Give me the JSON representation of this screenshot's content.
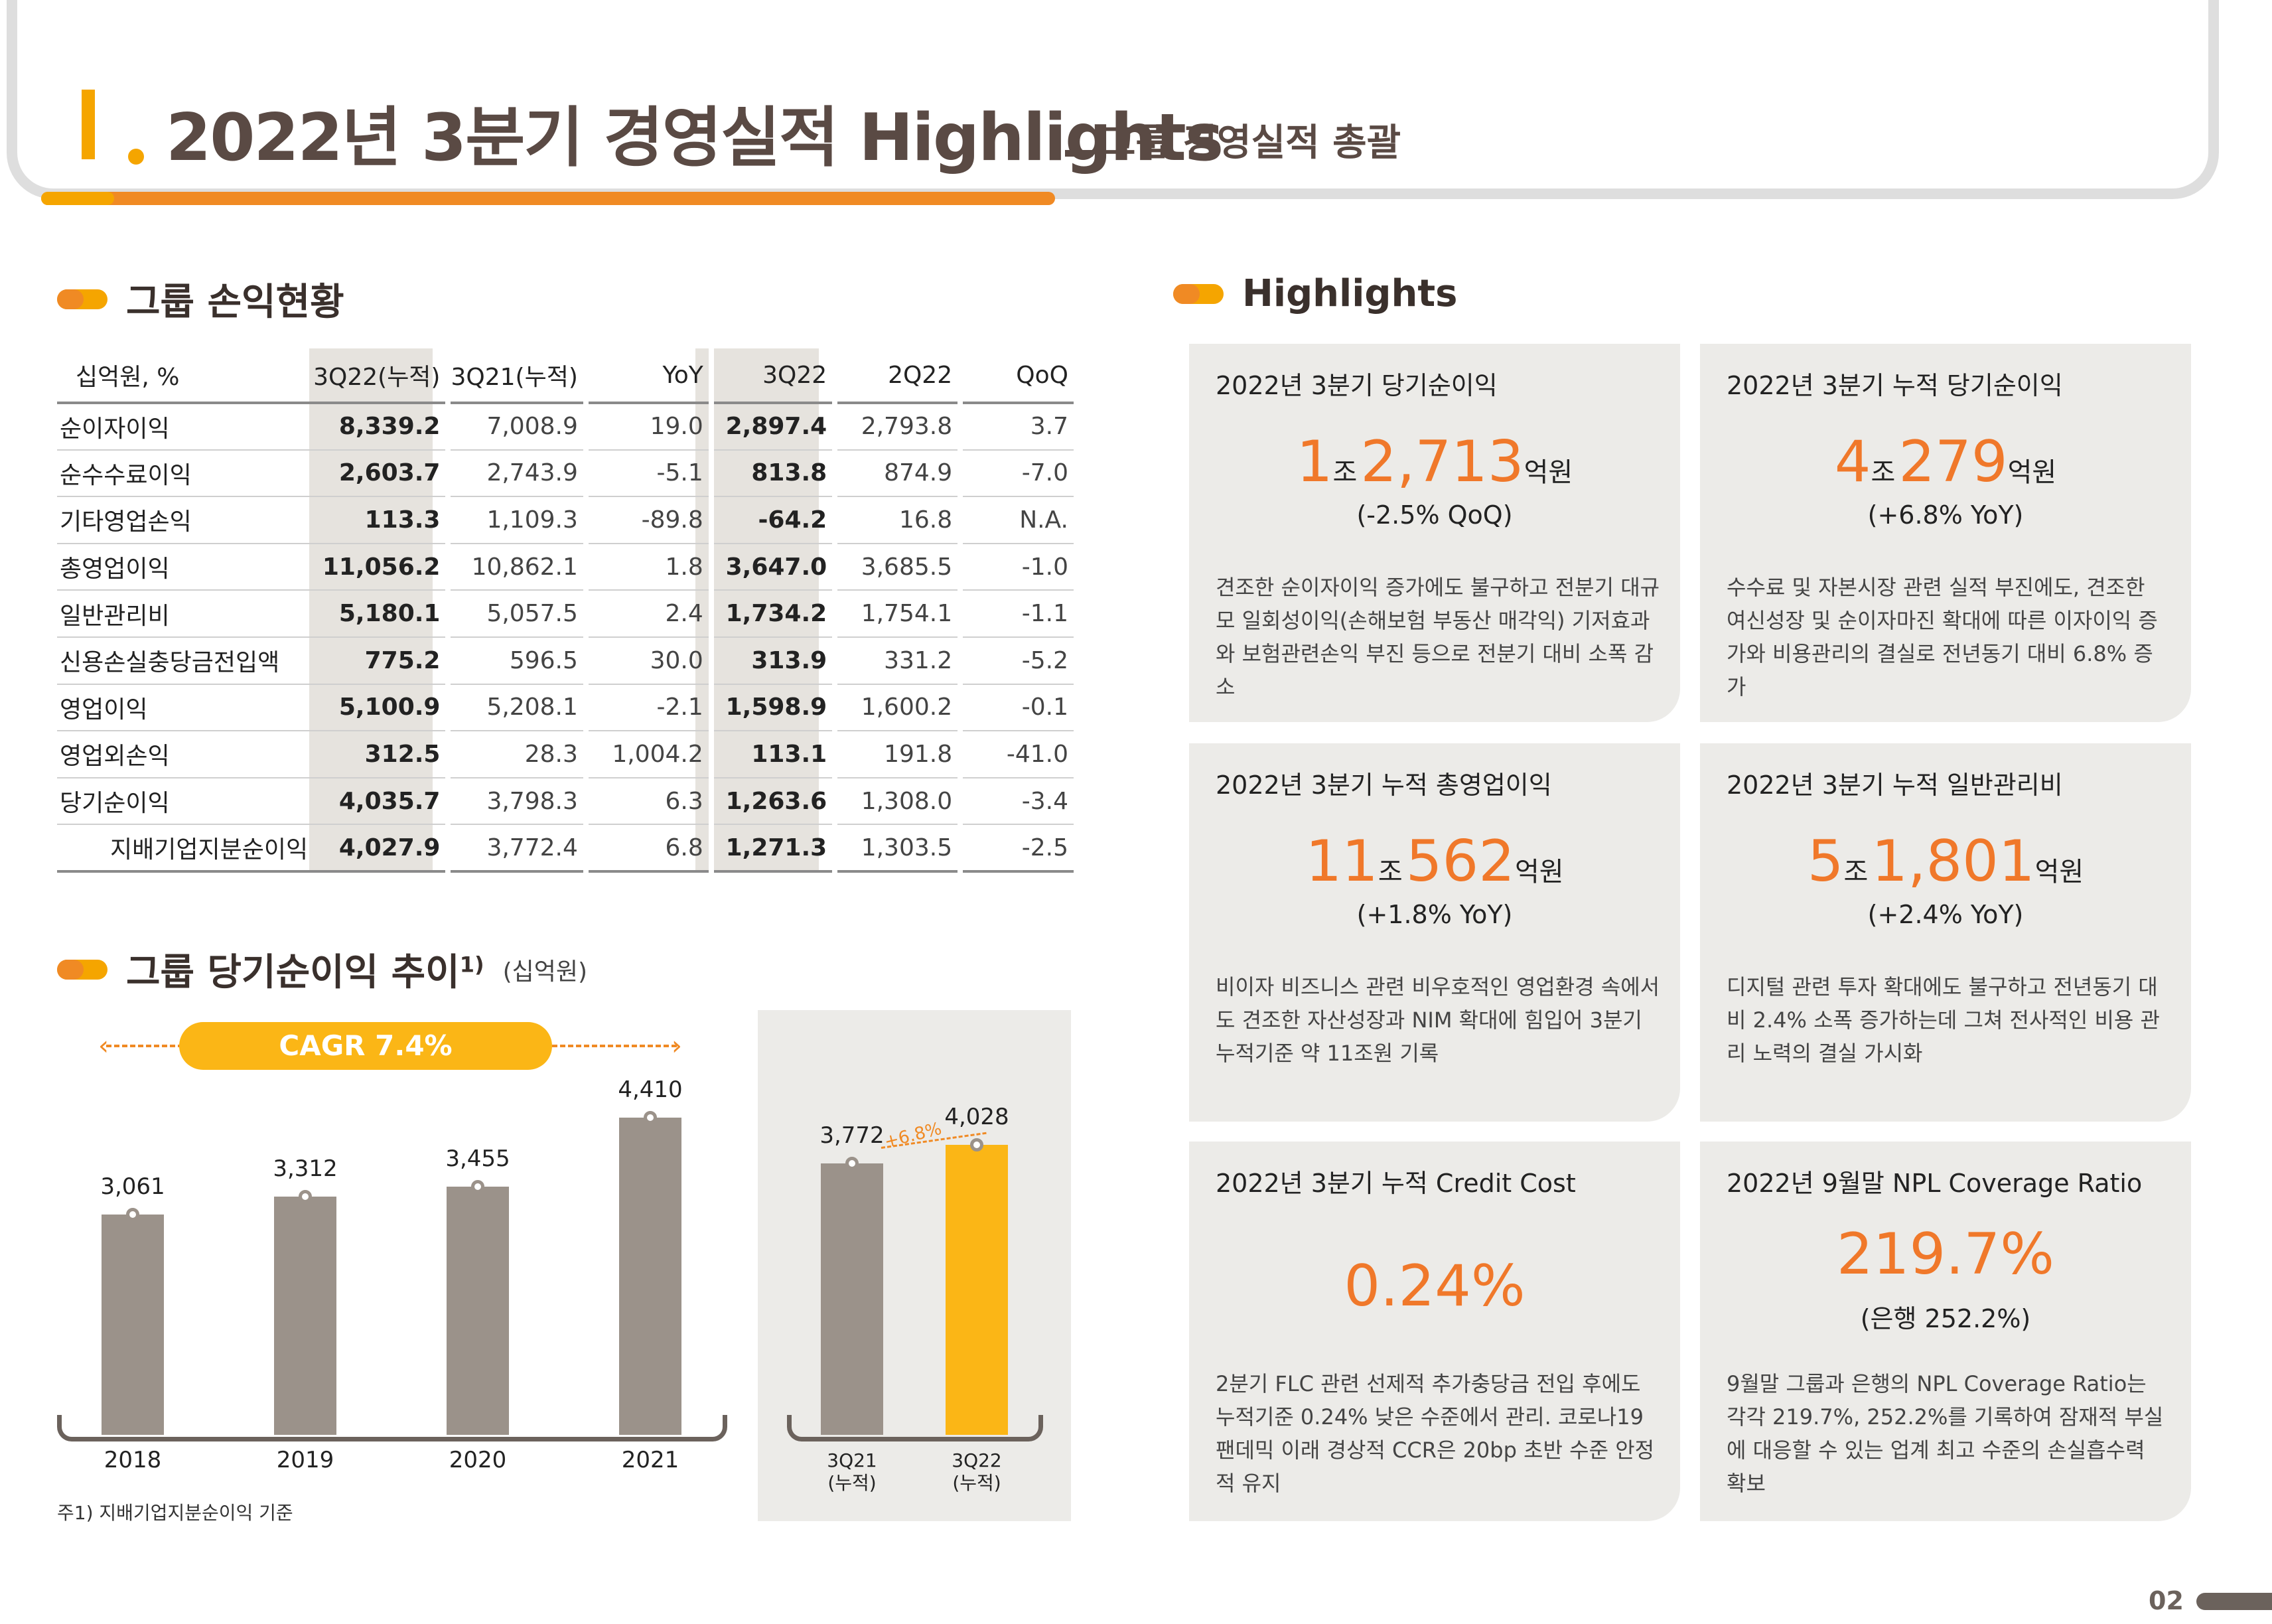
{
  "header": {
    "roman": "I",
    "title": "2022년 3분기 경영실적 Highlights",
    "subtitle": "그룹 경영실적 총괄"
  },
  "income": {
    "section_title": "그룹 손익현황",
    "columns": [
      "십억원, %",
      "3Q22(누적)",
      "3Q21(누적)",
      "YoY",
      "3Q22",
      "2Q22",
      "QoQ"
    ],
    "rows": [
      {
        "label": "순이자이익",
        "c1": "8,339.2",
        "c2": "7,008.9",
        "c3": "19.0",
        "c4": "2,897.4",
        "c5": "2,793.8",
        "c6": "3.7"
      },
      {
        "label": "순수수료이익",
        "c1": "2,603.7",
        "c2": "2,743.9",
        "c3": "-5.1",
        "c4": "813.8",
        "c5": "874.9",
        "c6": "-7.0"
      },
      {
        "label": "기타영업손익",
        "c1": "113.3",
        "c2": "1,109.3",
        "c3": "-89.8",
        "c4": "-64.2",
        "c5": "16.8",
        "c6": "N.A."
      },
      {
        "label": "총영업이익",
        "c1": "11,056.2",
        "c2": "10,862.1",
        "c3": "1.8",
        "c4": "3,647.0",
        "c5": "3,685.5",
        "c6": "-1.0"
      },
      {
        "label": "일반관리비",
        "c1": "5,180.1",
        "c2": "5,057.5",
        "c3": "2.4",
        "c4": "1,734.2",
        "c5": "1,754.1",
        "c6": "-1.1"
      },
      {
        "label": "신용손실충당금전입액",
        "c1": "775.2",
        "c2": "596.5",
        "c3": "30.0",
        "c4": "313.9",
        "c5": "331.2",
        "c6": "-5.2"
      },
      {
        "label": "영업이익",
        "c1": "5,100.9",
        "c2": "5,208.1",
        "c3": "-2.1",
        "c4": "1,598.9",
        "c5": "1,600.2",
        "c6": "-0.1"
      },
      {
        "label": "영업외손익",
        "c1": "312.5",
        "c2": "28.3",
        "c3": "1,004.2",
        "c4": "113.1",
        "c5": "191.8",
        "c6": "-41.0"
      },
      {
        "label": "당기순이익",
        "c1": "4,035.7",
        "c2": "3,798.3",
        "c3": "6.3",
        "c4": "1,263.6",
        "c5": "1,308.0",
        "c6": "-3.4"
      },
      {
        "label": "지배기업지분순이익",
        "c1": "4,027.9",
        "c2": "3,772.4",
        "c3": "6.8",
        "c4": "1,271.3",
        "c5": "1,303.5",
        "c6": "-2.5"
      }
    ]
  },
  "trend": {
    "section_title": "그룹 당기순이익 추이",
    "sup": "1)",
    "unit": "(십억원)",
    "cagr": "CAGR 7.4%",
    "growth": "+6.8%",
    "footnote": "주1) 지배기업지분순이익 기준"
  },
  "chart_data": {
    "type": "bar",
    "categories": [
      "2018",
      "2019",
      "2020",
      "2021",
      "3Q21\n(누적)",
      "3Q22\n(누적)"
    ],
    "values": [
      3061,
      3312,
      3455,
      4410,
      3772,
      4028
    ],
    "value_labels": [
      "3,061",
      "3,312",
      "3,455",
      "4,410",
      "3,772",
      "4,028"
    ],
    "cat_labels": [
      {
        "l1": "2018",
        "l2": ""
      },
      {
        "l1": "2019",
        "l2": ""
      },
      {
        "l1": "2020",
        "l2": ""
      },
      {
        "l1": "2021",
        "l2": ""
      },
      {
        "l1": "3Q21",
        "l2": "(누적)"
      },
      {
        "l1": "3Q22",
        "l2": "(누적)"
      }
    ],
    "ylim": [
      0,
      4410
    ],
    "colors": {
      "bar": "#9b928a",
      "highlight": "#fbb616",
      "accent": "#f08a24"
    }
  },
  "highlights": {
    "section_title": "Highlights",
    "cards": [
      {
        "title": "2022년 3분기 당기순이익",
        "n1": "1",
        "u1": "조",
        "n2": "2,713",
        "u2": "억원",
        "sub": "(-2.5% QoQ)",
        "desc": "견조한 순이자이익 증가에도 불구하고 전분기 대규모 일회성이익(손해보험 부동산 매각익) 기저효과와 보험관련손익 부진 등으로 전분기 대비 소폭 감소"
      },
      {
        "title": "2022년 3분기 누적 당기순이익",
        "n1": "4",
        "u1": "조",
        "n2": "279",
        "u2": "억원",
        "sub": "(+6.8% YoY)",
        "desc": "수수료 및 자본시장 관련 실적 부진에도, 견조한 여신성장 및 순이자마진 확대에 따른 이자이익 증가와 비용관리의 결실로 전년동기 대비 6.8% 증가"
      },
      {
        "title": "2022년 3분기 누적 총영업이익",
        "n1": "11",
        "u1": "조",
        "n2": "562",
        "u2": "억원",
        "sub": "(+1.8% YoY)",
        "desc": "비이자 비즈니스 관련 비우호적인 영업환경 속에서도 견조한 자산성장과 NIM 확대에 힘입어 3분기 누적기준 약 11조원 기록"
      },
      {
        "title": "2022년 3분기 누적 일반관리비",
        "n1": "5",
        "u1": "조",
        "n2": "1,801",
        "u2": "억원",
        "sub": "(+2.4% YoY)",
        "desc": "디지털 관련 투자 확대에도 불구하고 전년동기 대비 2.4% 소폭 증가하는데 그쳐 전사적인 비용 관리 노력의 결실 가시화"
      },
      {
        "title": "2022년 3분기 누적 Credit Cost",
        "big": "0.24%",
        "sub": "",
        "desc": "2분기 FLC 관련 선제적 추가충당금 전입 후에도 누적기준 0.24% 낮은 수준에서 관리. 코로나19 팬데믹 이래 경상적 CCR은 20bp 초반 수준 안정적 유지"
      },
      {
        "title": "2022년 9월말 NPL Coverage Ratio",
        "big": "219.7%",
        "sub": "(은행 252.2%)",
        "desc": "9월말 그룹과 은행의 NPL Coverage Ratio는 각각 219.7%, 252.2%를 기록하여 잠재적 부실에 대응할 수 있는 업계 최고 수준의 손실흡수력 확보"
      }
    ]
  },
  "page_number": "02"
}
